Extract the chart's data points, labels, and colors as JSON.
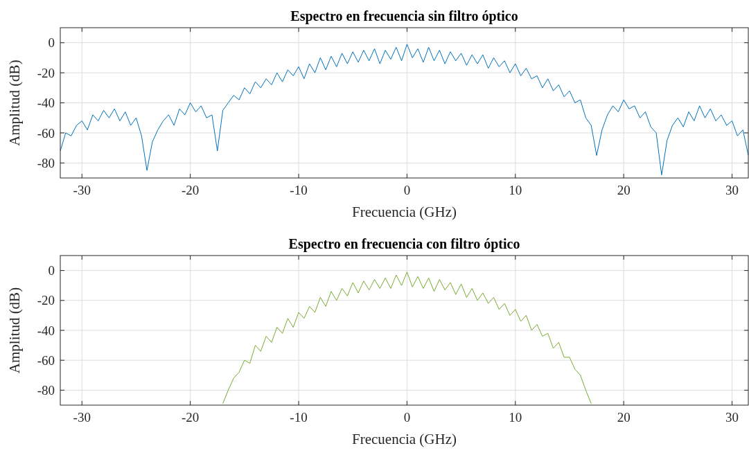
{
  "chart_data": [
    {
      "type": "line",
      "title": "Espectro en frecuencia sin filtro óptico",
      "xlabel": "Frecuencia (GHz)",
      "ylabel": "Amplitud (dB)",
      "xlim": [
        -32,
        31.5
      ],
      "ylim": [
        -90,
        10
      ],
      "xticks": [
        -30,
        -20,
        -10,
        0,
        10,
        20,
        30
      ],
      "yticks": [
        -80,
        -60,
        -40,
        -20,
        0
      ],
      "grid": true,
      "series": [
        {
          "color": "#0072bd",
          "x": [
            -32,
            -31.5,
            -31,
            -30.5,
            -30,
            -29.5,
            -29,
            -28.5,
            -28,
            -27.5,
            -27,
            -26.5,
            -26,
            -25.5,
            -25,
            -24.5,
            -24,
            -23.5,
            -23,
            -22.5,
            -22,
            -21.5,
            -21,
            -20.5,
            -20,
            -19.5,
            -19,
            -18.5,
            -18,
            -17.5,
            -17,
            -16.5,
            -16,
            -15.5,
            -15,
            -14.5,
            -14,
            -13.5,
            -13,
            -12.5,
            -12,
            -11.5,
            -11,
            -10.5,
            -10,
            -9.5,
            -9,
            -8.5,
            -8,
            -7.5,
            -7,
            -6.5,
            -6,
            -5.5,
            -5,
            -4.5,
            -4,
            -3.5,
            -3,
            -2.5,
            -2,
            -1.5,
            -1,
            -0.5,
            0,
            0.5,
            1,
            1.5,
            2,
            2.5,
            3,
            3.5,
            4,
            4.5,
            5,
            5.5,
            6,
            6.5,
            7,
            7.5,
            8,
            8.5,
            9,
            9.5,
            10,
            10.5,
            11,
            11.5,
            12,
            12.5,
            13,
            13.5,
            14,
            14.5,
            15,
            15.5,
            16,
            16.5,
            17,
            17.5,
            18,
            18.5,
            19,
            19.5,
            20,
            20.5,
            21,
            21.5,
            22,
            22.5,
            23,
            23.5,
            24,
            24.5,
            25,
            25.5,
            26,
            26.5,
            27,
            27.5,
            28,
            28.5,
            29,
            29.5,
            30,
            30.5,
            31,
            31.5
          ],
          "values": [
            -72,
            -60,
            -62,
            -55,
            -52,
            -58,
            -48,
            -52,
            -45,
            -50,
            -44,
            -52,
            -46,
            -55,
            -50,
            -62,
            -85,
            -66,
            -58,
            -52,
            -48,
            -55,
            -44,
            -48,
            -40,
            -46,
            -42,
            -50,
            -48,
            -72,
            -45,
            -40,
            -35,
            -38,
            -30,
            -34,
            -26,
            -30,
            -24,
            -28,
            -20,
            -26,
            -18,
            -22,
            -16,
            -24,
            -14,
            -20,
            -10,
            -18,
            -9,
            -16,
            -7,
            -14,
            -6,
            -13,
            -5,
            -12,
            -4,
            -14,
            -5,
            -11,
            -3,
            -12,
            -1,
            -10,
            -4,
            -13,
            -3,
            -12,
            -5,
            -14,
            -6,
            -12,
            -7,
            -15,
            -8,
            -14,
            -8,
            -17,
            -10,
            -16,
            -12,
            -20,
            -14,
            -22,
            -17,
            -24,
            -22,
            -30,
            -24,
            -32,
            -28,
            -36,
            -32,
            -40,
            -38,
            -50,
            -55,
            -75,
            -58,
            -48,
            -42,
            -46,
            -38,
            -44,
            -42,
            -50,
            -46,
            -56,
            -60,
            -88,
            -65,
            -55,
            -50,
            -56,
            -46,
            -52,
            -42,
            -50,
            -44,
            -52,
            -48,
            -55,
            -52,
            -62,
            -58,
            -75
          ]
        }
      ]
    },
    {
      "type": "line",
      "title": "Espectro en frecuencia con filtro óptico",
      "xlabel": "Frecuencia (GHz)",
      "ylabel": "Amplitud (dB)",
      "xlim": [
        -32,
        31.5
      ],
      "ylim": [
        -90,
        10
      ],
      "xticks": [
        -30,
        -20,
        -10,
        0,
        10,
        20,
        30
      ],
      "yticks": [
        -80,
        -60,
        -40,
        -20,
        0
      ],
      "grid": true,
      "series": [
        {
          "color": "#77ac30",
          "x": [
            -17,
            -16.5,
            -16,
            -15.5,
            -15,
            -14.5,
            -14,
            -13.5,
            -13,
            -12.5,
            -12,
            -11.5,
            -11,
            -10.5,
            -10,
            -9.5,
            -9,
            -8.5,
            -8,
            -7.5,
            -7,
            -6.5,
            -6,
            -5.5,
            -5,
            -4.5,
            -4,
            -3.5,
            -3,
            -2.5,
            -2,
            -1.5,
            -1,
            -0.5,
            0,
            0.5,
            1,
            1.5,
            2,
            2.5,
            3,
            3.5,
            4,
            4.5,
            5,
            5.5,
            6,
            6.5,
            7,
            7.5,
            8,
            8.5,
            9,
            9.5,
            10,
            10.5,
            11,
            11.5,
            12,
            12.5,
            13,
            13.5,
            14,
            14.5,
            15,
            15.5,
            16,
            16.5,
            17
          ],
          "values": [
            -89,
            -80,
            -72,
            -68,
            -60,
            -62,
            -50,
            -54,
            -44,
            -48,
            -38,
            -42,
            -32,
            -38,
            -28,
            -32,
            -24,
            -28,
            -18,
            -24,
            -14,
            -20,
            -12,
            -17,
            -8,
            -15,
            -7,
            -13,
            -6,
            -12,
            -5,
            -12,
            -3,
            -10,
            -1,
            -11,
            -4,
            -12,
            -5,
            -14,
            -6,
            -13,
            -8,
            -16,
            -9,
            -18,
            -12,
            -20,
            -15,
            -22,
            -18,
            -26,
            -22,
            -30,
            -26,
            -34,
            -30,
            -40,
            -36,
            -44,
            -42,
            -52,
            -48,
            -58,
            -58,
            -66,
            -70,
            -80,
            -89
          ]
        }
      ]
    }
  ]
}
